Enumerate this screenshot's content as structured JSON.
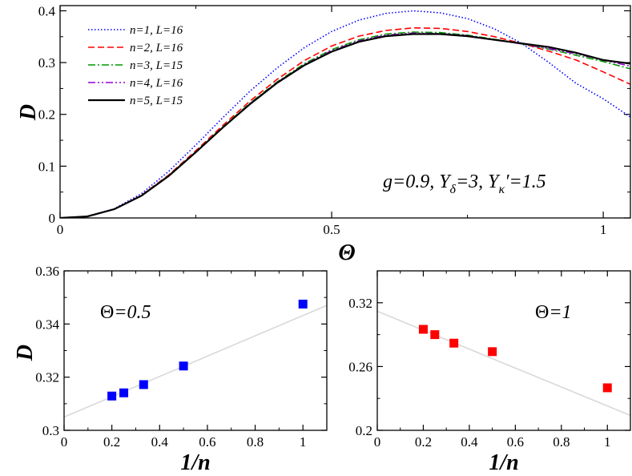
{
  "chart_data": [
    {
      "type": "line",
      "xlabel": "Θ",
      "ylabel": "D",
      "xlim": [
        0,
        1.05
      ],
      "ylim": [
        0,
        0.41
      ],
      "xticks": [
        0,
        0.5,
        1
      ],
      "xtick_labels": [
        "0",
        "0.5",
        "1"
      ],
      "yticks": [
        0,
        0.1,
        0.2,
        0.3,
        0.4
      ],
      "ytick_labels": [
        "0",
        "0.1",
        "0.2",
        "0.3",
        "0.4"
      ],
      "legend_position": "top-left",
      "annotation": {
        "parts": [
          "g=0.9, Y",
          "δ",
          "=3, Y",
          "κ",
          "′=1.5"
        ]
      },
      "series": [
        {
          "name": "n=1, L=16",
          "color": "#0000ff",
          "dash": "dotted",
          "x": [
            0,
            0.05,
            0.1,
            0.15,
            0.2,
            0.25,
            0.3,
            0.35,
            0.4,
            0.45,
            0.5,
            0.55,
            0.6,
            0.65,
            0.7,
            0.75,
            0.8,
            0.85,
            0.9,
            0.95,
            1.0,
            1.05
          ],
          "y": [
            0,
            0.003,
            0.018,
            0.047,
            0.09,
            0.141,
            0.194,
            0.245,
            0.29,
            0.329,
            0.36,
            0.382,
            0.395,
            0.4,
            0.396,
            0.385,
            0.365,
            0.337,
            0.3,
            0.26,
            0.23,
            0.195
          ]
        },
        {
          "name": "n=2, L=16",
          "color": "#ff0000",
          "dash": "dashed",
          "x": [
            0,
            0.05,
            0.1,
            0.15,
            0.2,
            0.25,
            0.3,
            0.35,
            0.4,
            0.45,
            0.5,
            0.55,
            0.6,
            0.65,
            0.7,
            0.75,
            0.8,
            0.85,
            0.9,
            0.95,
            1.0,
            1.05
          ],
          "y": [
            0,
            0.003,
            0.017,
            0.044,
            0.083,
            0.13,
            0.179,
            0.226,
            0.268,
            0.304,
            0.332,
            0.351,
            0.362,
            0.367,
            0.366,
            0.36,
            0.35,
            0.337,
            0.322,
            0.305,
            0.282,
            0.258
          ]
        },
        {
          "name": "n=3, L=15",
          "color": "#009900",
          "dash": "dashdot",
          "x": [
            0,
            0.05,
            0.1,
            0.15,
            0.2,
            0.25,
            0.3,
            0.35,
            0.4,
            0.45,
            0.5,
            0.55,
            0.6,
            0.65,
            0.7,
            0.75,
            0.8,
            0.85,
            0.9,
            0.95,
            1.0,
            1.05
          ],
          "y": [
            0,
            0.003,
            0.017,
            0.043,
            0.082,
            0.128,
            0.176,
            0.222,
            0.263,
            0.298,
            0.325,
            0.344,
            0.355,
            0.359,
            0.358,
            0.353,
            0.345,
            0.336,
            0.326,
            0.314,
            0.302,
            0.288
          ]
        },
        {
          "name": "n=4, L=16",
          "color": "#9400d3",
          "dash": "dashdotdot",
          "x": [
            0,
            0.05,
            0.1,
            0.15,
            0.2,
            0.25,
            0.3,
            0.35,
            0.4,
            0.45,
            0.5,
            0.55,
            0.6,
            0.65,
            0.7,
            0.75,
            0.8,
            0.85,
            0.9,
            0.95,
            1.0,
            1.05
          ],
          "y": [
            0,
            0.003,
            0.017,
            0.043,
            0.081,
            0.127,
            0.175,
            0.221,
            0.262,
            0.296,
            0.323,
            0.342,
            0.353,
            0.357,
            0.356,
            0.352,
            0.344,
            0.336,
            0.327,
            0.317,
            0.305,
            0.293
          ]
        },
        {
          "name": "n=5, L=15",
          "color": "#000000",
          "dash": "solid",
          "x": [
            0,
            0.05,
            0.1,
            0.15,
            0.2,
            0.25,
            0.3,
            0.35,
            0.4,
            0.45,
            0.5,
            0.55,
            0.6,
            0.65,
            0.7,
            0.75,
            0.8,
            0.85,
            0.9,
            0.95,
            1.0,
            1.05
          ],
          "y": [
            0,
            0.003,
            0.017,
            0.043,
            0.081,
            0.127,
            0.175,
            0.22,
            0.261,
            0.295,
            0.321,
            0.34,
            0.351,
            0.355,
            0.355,
            0.351,
            0.344,
            0.337,
            0.33,
            0.319,
            0.305,
            0.298
          ]
        }
      ]
    },
    {
      "type": "scatter",
      "xlabel": "1/n",
      "ylabel": "D",
      "xlim": [
        0,
        1.1
      ],
      "ylim": [
        0.3,
        0.36
      ],
      "xticks": [
        0,
        0.2,
        0.4,
        0.6,
        0.8,
        1
      ],
      "xtick_labels": [
        "0",
        "0.2",
        "0.4",
        "0.6",
        "0.8",
        "1"
      ],
      "yticks": [
        0.3,
        0.32,
        0.34,
        0.36
      ],
      "ytick_labels": [
        "0.3",
        "0.32",
        "0.34",
        "0.36"
      ],
      "annotation": {
        "symbol": "Θ",
        "rest": "=0.5"
      },
      "marker_color": "#0000ff",
      "points": {
        "x": [
          0.2,
          0.25,
          0.333,
          0.5,
          1.0
        ],
        "y": [
          0.3129,
          0.3141,
          0.3172,
          0.3242,
          0.3475
        ]
      },
      "fit_line": {
        "x": [
          0,
          1.1
        ],
        "y": [
          0.305,
          0.347
        ],
        "color": "#d9d9d9"
      }
    },
    {
      "type": "scatter",
      "xlabel": "1/n",
      "ylabel": "",
      "xlim": [
        0,
        1.1
      ],
      "ylim": [
        0.2,
        0.35
      ],
      "xticks": [
        0,
        0.2,
        0.4,
        0.6,
        0.8,
        1
      ],
      "xtick_labels": [
        "0",
        "0.2",
        "0.4",
        "0.6",
        "0.8",
        "1"
      ],
      "yticks": [
        0.2,
        0.26,
        0.32
      ],
      "ytick_labels": [
        "0.2",
        "0.26",
        "0.32"
      ],
      "annotation": {
        "symbol": "Θ",
        "rest": "=1"
      },
      "marker_color": "#ff0000",
      "points": {
        "x": [
          0.2,
          0.25,
          0.333,
          0.5,
          1.0
        ],
        "y": [
          0.295,
          0.29,
          0.282,
          0.274,
          0.24
        ]
      },
      "fit_line": {
        "x": [
          0,
          1.1
        ],
        "y": [
          0.312,
          0.214
        ],
        "color": "#d9d9d9"
      }
    }
  ]
}
